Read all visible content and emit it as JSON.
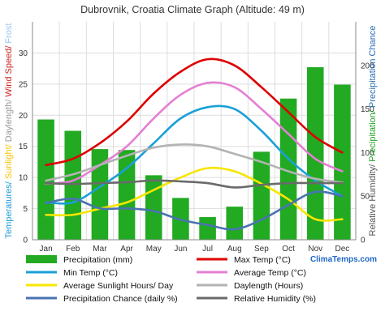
{
  "chart_data": {
    "type": "bar-line",
    "title": "Dubrovnik, Croatia Climate Graph (Altitude: 49 m)",
    "brand": "ClimaTemps.com",
    "categories": [
      "Jan",
      "Feb",
      "Mar",
      "Apr",
      "May",
      "Jun",
      "Jul",
      "Aug",
      "Sep",
      "Oct",
      "Nov",
      "Dec"
    ],
    "left_axis": {
      "range": [
        0,
        35
      ],
      "ticks": [
        "0",
        "5",
        "10",
        "15",
        "20",
        "25",
        "30"
      ],
      "label_parts": [
        {
          "text": "Temperatures/ ",
          "color": "#1a9ad6"
        },
        {
          "text": "Sunlight/ ",
          "color": "#f5c400"
        },
        {
          "text": "Daylength/ ",
          "color": "#9a9a9a"
        },
        {
          "text": "Wind Speed/ ",
          "color": "#cc2222"
        },
        {
          "text": "Frost",
          "color": "#9ac7ee"
        }
      ]
    },
    "right_axis": {
      "range": [
        0,
        250
      ],
      "ticks": [
        "0",
        "50",
        "100",
        "150",
        "200"
      ],
      "label_parts": [
        {
          "text": "Relative Humidity/ ",
          "color": "#555555"
        },
        {
          "text": "Precipitation/ ",
          "color": "#22a022"
        },
        {
          "text": "Precipitation Chance",
          "color": "#2a6fb5"
        }
      ]
    },
    "bars": {
      "name": "Precipitation (mm)",
      "axis": "right",
      "color": "#22aa22",
      "values": [
        138,
        125,
        104,
        103,
        74,
        48,
        26,
        38,
        101,
        162,
        198,
        178
      ]
    },
    "series": [
      {
        "name": "Max Temp (°C)",
        "axis": "left",
        "color": "#dd0000",
        "values": [
          12,
          13,
          15.5,
          19,
          23.5,
          27,
          29,
          28,
          24.5,
          20.5,
          16.5,
          14
        ]
      },
      {
        "name": "Min Temp (°C)",
        "axis": "left",
        "color": "#1aa0d8",
        "values": [
          6,
          6,
          8.5,
          11.5,
          15.5,
          19.5,
          21.3,
          21,
          17.5,
          13,
          9.5,
          7
        ]
      },
      {
        "name": "Average Temp (°C)",
        "axis": "left",
        "color": "#e47fd4",
        "values": [
          9,
          9.5,
          12,
          15,
          19.5,
          23.3,
          25.2,
          24.5,
          21,
          17,
          13,
          11
        ]
      },
      {
        "name": "Average Sunlight Hours/ Day",
        "axis": "left",
        "color": "#f7e600",
        "values": [
          4,
          4,
          5,
          6,
          8,
          10,
          11.5,
          11,
          9,
          6.5,
          3.3,
          3.3
        ]
      },
      {
        "name": "Daylength (Hours)",
        "axis": "left",
        "color": "#b3b3b3",
        "values": [
          9.5,
          10.5,
          12,
          13.5,
          14.8,
          15.3,
          15,
          13.8,
          12.5,
          11,
          9.8,
          9.2
        ]
      },
      {
        "name": "Precipitation Chance (daily %)",
        "axis": "right",
        "color": "#4a73b0",
        "values": [
          42,
          47,
          36,
          36,
          33,
          23,
          17,
          12,
          23,
          40,
          55,
          50
        ]
      },
      {
        "name": "Relative Humidity (%)",
        "axis": "right",
        "color": "#6a6a6a",
        "values": [
          65,
          64,
          65,
          66,
          68,
          67,
          65,
          60,
          63,
          65,
          65,
          65
        ]
      }
    ],
    "grid": true,
    "legend": "bottom"
  }
}
